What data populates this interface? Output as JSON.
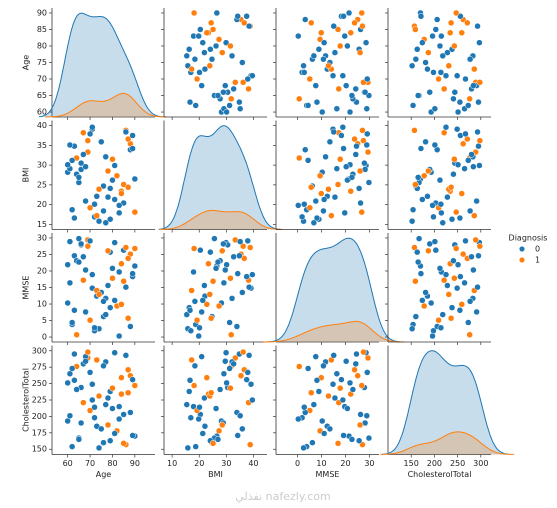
{
  "chart_data": {
    "type": "pairplot",
    "variables": [
      {
        "name": "Age",
        "xlim": [
          53,
          99
        ],
        "ylim": [
          58.5,
          91.5
        ],
        "xticks": [
          60,
          70,
          80,
          90
        ],
        "yticks": [
          60,
          65,
          70,
          75,
          80,
          85,
          90
        ],
        "values": [
          73,
          88,
          62,
          81,
          67,
          79,
          90,
          64,
          85,
          71,
          76,
          69,
          83,
          60,
          87,
          74,
          66,
          78,
          82,
          63,
          70,
          89,
          65,
          77,
          84,
          72,
          61,
          86,
          68,
          80,
          75,
          90,
          62,
          79,
          71,
          84,
          66,
          73,
          88,
          64,
          81,
          69,
          77,
          60,
          85,
          70,
          83,
          67,
          74,
          89,
          63,
          78,
          86,
          72,
          65,
          80,
          76,
          61,
          87,
          68
        ]
      },
      {
        "name": "BMI",
        "xlim": [
          7,
          45
        ],
        "ylim": [
          13.7,
          41.3
        ],
        "xticks": [
          10,
          20,
          30,
          40
        ],
        "yticks": [
          15,
          20,
          25,
          30,
          35,
          40
        ],
        "values": [
          22.1,
          35.4,
          18.7,
          29.9,
          38.2,
          16.3,
          26.5,
          31.8,
          20.4,
          39.1,
          24.7,
          33.3,
          17.9,
          28.2,
          36.6,
          15.8,
          30.5,
          21.9,
          27.3,
          34.8,
          19.2,
          37.5,
          25.6,
          32.1,
          23.4,
          16.9,
          29.1,
          38.8,
          20.9,
          26.2,
          35.9,
          18.1,
          31.2,
          24.1,
          39.6,
          22.8,
          28.9,
          17.2,
          33.9,
          27.7,
          21.3,
          36.2,
          15.4,
          30.1,
          25.1,
          37.9,
          19.8,
          32.7,
          23.9,
          34.2,
          16.6,
          28.5,
          38.4,
          20.1,
          26.9,
          31.5,
          18.4,
          35.1,
          24.4,
          29.6
        ]
      },
      {
        "name": "MMSE",
        "xlim": [
          -9,
          34
        ],
        "ylim": [
          -1.5,
          31.5
        ],
        "xticks": [
          0,
          10,
          20,
          30
        ],
        "yticks": [
          0,
          5,
          10,
          15,
          20,
          25,
          30
        ],
        "values": [
          12.4,
          25.1,
          3.8,
          28.6,
          17.2,
          8.9,
          21.5,
          0.7,
          26.3,
          14.8,
          6.2,
          29.4,
          19.7,
          10.3,
          23.8,
          2.5,
          27.9,
          15.6,
          9.4,
          24.6,
          5.1,
          18.3,
          29.8,
          11.7,
          22.2,
          1.9,
          16.4,
          27.1,
          7.6,
          20.8,
          13.5,
          26.8,
          4.4,
          25.7,
          18.9,
          9.9,
          28.2,
          14.1,
          3.2,
          23.1,
          11.1,
          27.5,
          6.8,
          21.9,
          16.9,
          29.1,
          0.3,
          24.3,
          12.9,
          19.2,
          8.1,
          26.1,
          15.1,
          2.8,
          22.7,
          17.8,
          10.8,
          28.9,
          5.7,
          20.3
        ]
      },
      {
        "name": "CholesterolTotal",
        "xlim": [
          100,
          322
        ],
        "ylim": [
          142,
          308
        ],
        "xticks": [
          150,
          200,
          250,
          300
        ],
        "yticks": [
          150,
          175,
          200,
          225,
          250,
          275,
          300
        ],
        "values": [
          185,
          262,
          154,
          297,
          221,
          238,
          170,
          276,
          203,
          249,
          160,
          289,
          215,
          193,
          271,
          152,
          244,
          228,
          178,
          295,
          209,
          256,
          167,
          283,
          234,
          198,
          265,
          157,
          291,
          212,
          181,
          247,
          273,
          163,
          225,
          259,
          190,
          286,
          206,
          241,
          174,
          298,
          218,
          251,
          159,
          267,
          196,
          280,
          231,
          171,
          255,
          187,
          293,
          214,
          165,
          243,
          277,
          201,
          236,
          284
        ]
      }
    ],
    "hue": {
      "name": "Diagnosis",
      "levels": [
        {
          "value": 0,
          "color": "#1f77b4"
        },
        {
          "value": 1,
          "color": "#ff7f0e"
        }
      ],
      "values": [
        0,
        1,
        0,
        0,
        1,
        0,
        0,
        1,
        0,
        0,
        0,
        1,
        0,
        0,
        1,
        0,
        0,
        0,
        1,
        0,
        1,
        0,
        0,
        0,
        1,
        0,
        0,
        1,
        0,
        0,
        0,
        1,
        0,
        0,
        0,
        1,
        0,
        1,
        0,
        0,
        0,
        1,
        0,
        0,
        1,
        0,
        0,
        0,
        1,
        0,
        0,
        1,
        0,
        0,
        0,
        1,
        0,
        0,
        1,
        0
      ]
    },
    "watermark": "نفذلي nafezly.com"
  }
}
